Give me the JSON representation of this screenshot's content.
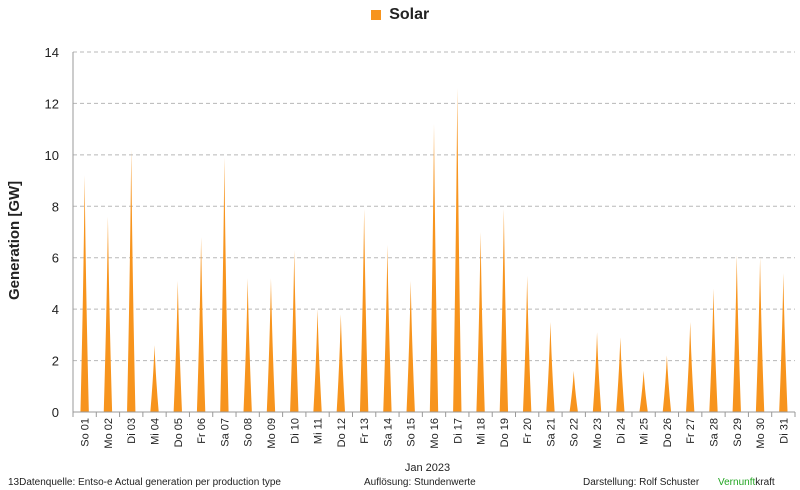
{
  "chart_data": {
    "type": "area",
    "legend": {
      "entries": [
        "Solar"
      ],
      "placement": "top-center"
    },
    "ylabel": "Generation  [GW]",
    "xlabel": "Jan 2023",
    "ylim": [
      0,
      14
    ],
    "yticks": [
      0,
      2,
      4,
      6,
      8,
      10,
      12,
      14
    ],
    "grid": true,
    "categories": [
      "So 01",
      "Mo 02",
      "Di 03",
      "Mi 04",
      "Do 05",
      "Fr 06",
      "Sa 07",
      "So 08",
      "Mo 09",
      "Di 10",
      "Mi 11",
      "Do 12",
      "Fr 13",
      "Sa 14",
      "So 15",
      "Mo 16",
      "Di 17",
      "Mi 18",
      "Do 19",
      "Fr 20",
      "Sa 21",
      "So 22",
      "Mo 23",
      "Di 24",
      "Mi 25",
      "Do 26",
      "Fr 27",
      "Sa 28",
      "So 29",
      "Mo 30",
      "Di 31"
    ],
    "series": [
      {
        "name": "Solar",
        "color": "#F7941D",
        "values": [
          9.2,
          7.6,
          10.2,
          2.6,
          5.1,
          6.8,
          9.9,
          5.2,
          5.2,
          6.3,
          4.0,
          3.8,
          7.9,
          6.5,
          5.1,
          11.2,
          12.6,
          7.0,
          7.9,
          5.3,
          3.5,
          1.6,
          3.1,
          2.9,
          1.6,
          2.2,
          3.5,
          4.8,
          6.1,
          6.0,
          5.4
        ]
      }
    ]
  },
  "footer": {
    "source": "13Datenquelle: Entso-e  Actual generation per production type",
    "resolution": "Auflösung: Stundenwerte",
    "author": "Darstellung:  Rolf Schuster",
    "brand_green": "Vernunft",
    "brand_rest": "kraft"
  }
}
